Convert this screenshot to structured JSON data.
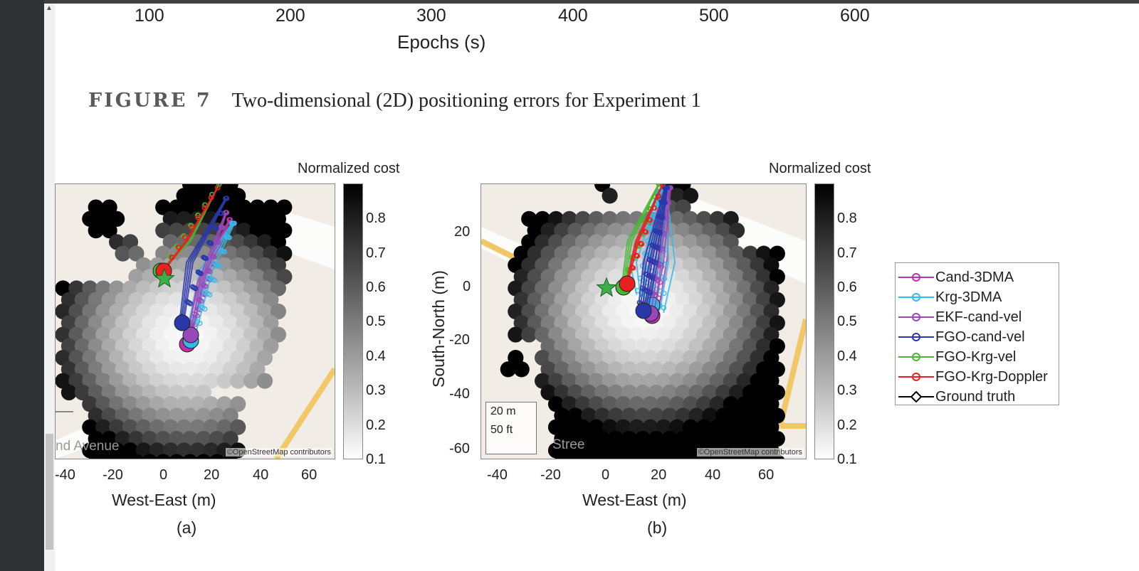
{
  "previous_axis": {
    "ticks": [
      "100",
      "200",
      "300",
      "400",
      "500",
      "600"
    ],
    "label": "Epochs (s)"
  },
  "caption": {
    "figure": "FIGURE 7",
    "text": "Two-dimensional (2D) positioning errors for Experiment 1"
  },
  "colorbar": {
    "title": "Normalized cost",
    "ticks": [
      "0.8",
      "0.7",
      "0.6",
      "0.5",
      "0.4",
      "0.3",
      "0.2",
      "0.1"
    ],
    "range": [
      0.1,
      0.9
    ]
  },
  "panel_a": {
    "sublabel": "(a)",
    "xlabel": "West-East (m)",
    "xticks": [
      "-40",
      "-20",
      "0",
      "20",
      "40",
      "60"
    ],
    "street_label": "nd Avenue",
    "attribution": "©OpenStreetMap contributors"
  },
  "panel_b": {
    "sublabel": "(b)",
    "xlabel": "West-East (m)",
    "ylabel": "South-North (m)",
    "xticks": [
      "-40",
      "-20",
      "0",
      "20",
      "40",
      "60"
    ],
    "yticks": [
      "20",
      "0",
      "-20",
      "-40",
      "-60"
    ],
    "scale_m": "20 m",
    "scale_ft": "50 ft",
    "street_label": "Stree",
    "attribution": "©OpenStreetMap contributors"
  },
  "legend": [
    {
      "label": "Cand-3DMA",
      "color": "#c030a8",
      "marker": "circle"
    },
    {
      "label": "Krg-3DMA",
      "color": "#38b8e8",
      "marker": "circle"
    },
    {
      "label": "EKF-cand-vel",
      "color": "#9848b8",
      "marker": "circle"
    },
    {
      "label": "FGO-cand-vel",
      "color": "#2838a8",
      "marker": "circle"
    },
    {
      "label": "FGO-Krg-vel",
      "color": "#48b830",
      "marker": "circle"
    },
    {
      "label": "FGO-Krg-Doppler",
      "color": "#e82020",
      "marker": "circle"
    },
    {
      "label": "Ground truth",
      "color": "#000000",
      "marker": "diamond"
    }
  ]
}
